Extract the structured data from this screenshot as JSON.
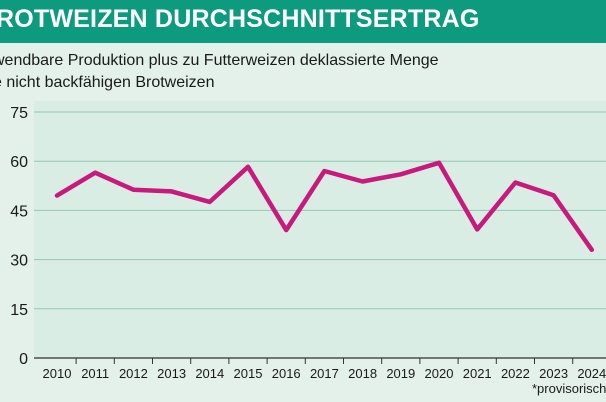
{
  "header": {
    "title": "ROTWEIZEN DURCHSCHNITTSERTRAG",
    "subtitle_line1": "wendbare Produktion plus zu Futterweizen deklassierte Menge",
    "subtitle_line2": "e nicht backfähigen Brotweizen"
  },
  "footnote": "*provisorisch",
  "colors": {
    "header_bg": "#0e9a7e",
    "plot_bg": "#d9ede5",
    "line": "#c8197d",
    "grid": "#8fc9b6"
  },
  "chart_data": {
    "type": "line",
    "title": "ROTWEIZEN DURCHSCHNITTSERTRAG",
    "categories": [
      "2010",
      "2011",
      "2012",
      "2013",
      "2014",
      "2015",
      "2016",
      "2017",
      "2018",
      "2019",
      "2020",
      "2021",
      "2022",
      "2023",
      "2024"
    ],
    "series": [
      {
        "values": [
          49.5,
          56.5,
          51.3,
          50.8,
          47.6,
          58.3,
          39.0,
          57.0,
          53.8,
          56.0,
          59.5,
          39.2,
          53.5,
          49.6,
          33.0
        ]
      }
    ],
    "yticks": [
      "0",
      "15",
      "30",
      "45",
      "60",
      "75"
    ],
    "ylim": [
      0,
      75
    ],
    "grid": true,
    "legend": "none"
  }
}
